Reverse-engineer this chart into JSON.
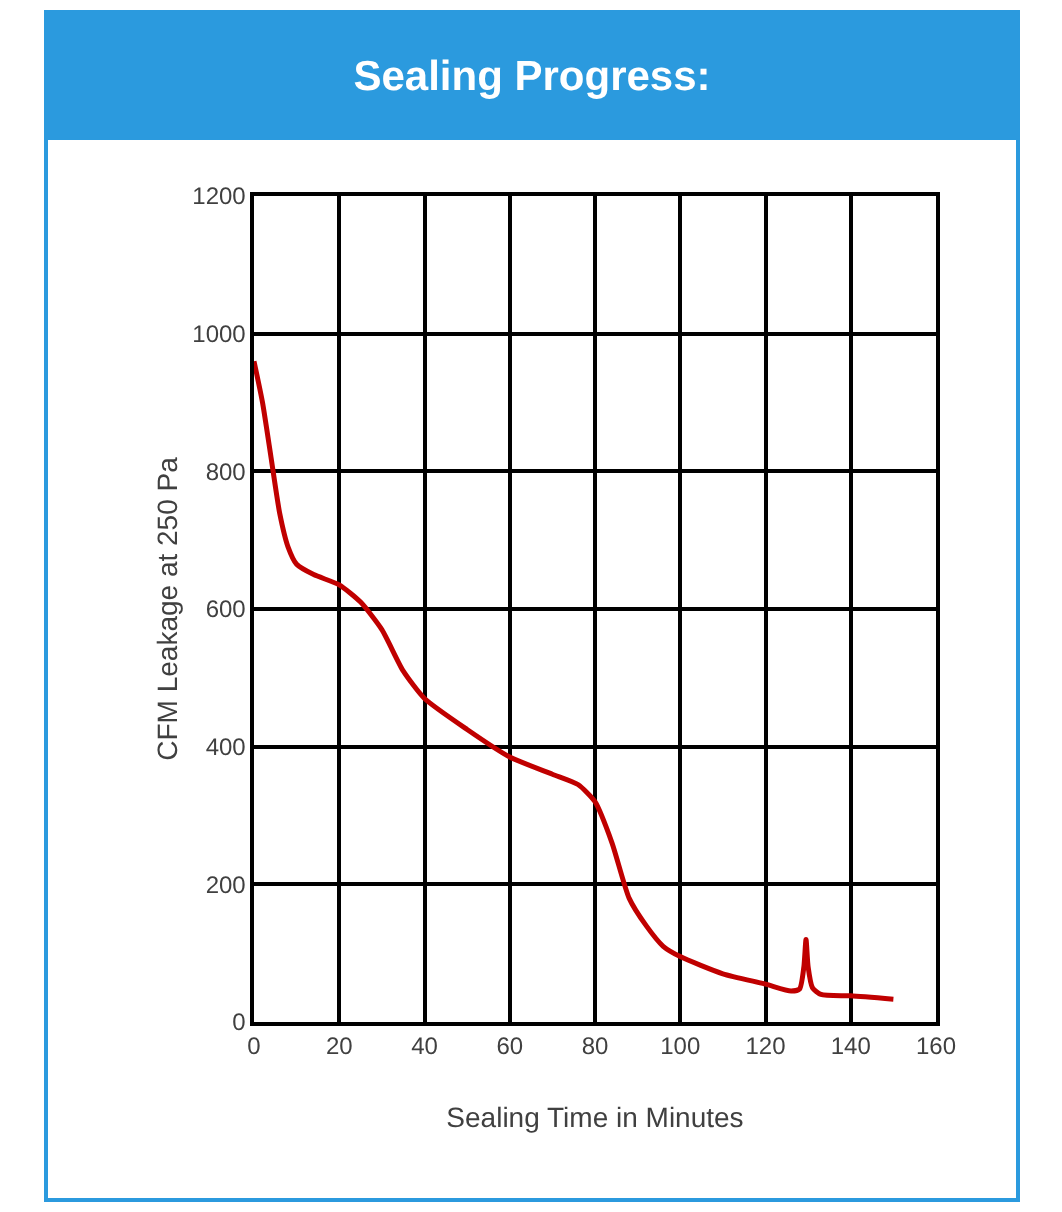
{
  "chart_data": {
    "type": "line",
    "title": "Sealing Progress:",
    "xlabel": "Sealing Time in Minutes",
    "ylabel": "CFM Leakage at 250 Pa",
    "x": [
      0,
      2,
      4,
      6,
      8,
      10,
      14,
      20,
      25,
      30,
      35,
      40,
      50,
      60,
      70,
      76,
      80,
      84,
      88,
      92,
      96,
      100,
      110,
      120,
      126,
      128,
      129,
      129.5,
      130,
      131,
      133,
      140,
      150
    ],
    "series": [
      {
        "color": "#c00000",
        "values": [
          960,
          900,
          820,
          740,
          690,
          665,
          650,
          635,
          610,
          570,
          510,
          470,
          425,
          385,
          360,
          345,
          320,
          260,
          180,
          140,
          110,
          95,
          70,
          55,
          45,
          48,
          80,
          120,
          80,
          50,
          40,
          38,
          33
        ]
      }
    ],
    "xlim": [
      0,
      160
    ],
    "xticks": [
      0,
      20,
      40,
      60,
      80,
      100,
      120,
      140,
      160
    ],
    "ylim": [
      0,
      1200
    ],
    "yticks": [
      0,
      200,
      400,
      600,
      800,
      1000,
      1200
    ],
    "grid": true,
    "marker": "none",
    "line_style": "solid"
  }
}
